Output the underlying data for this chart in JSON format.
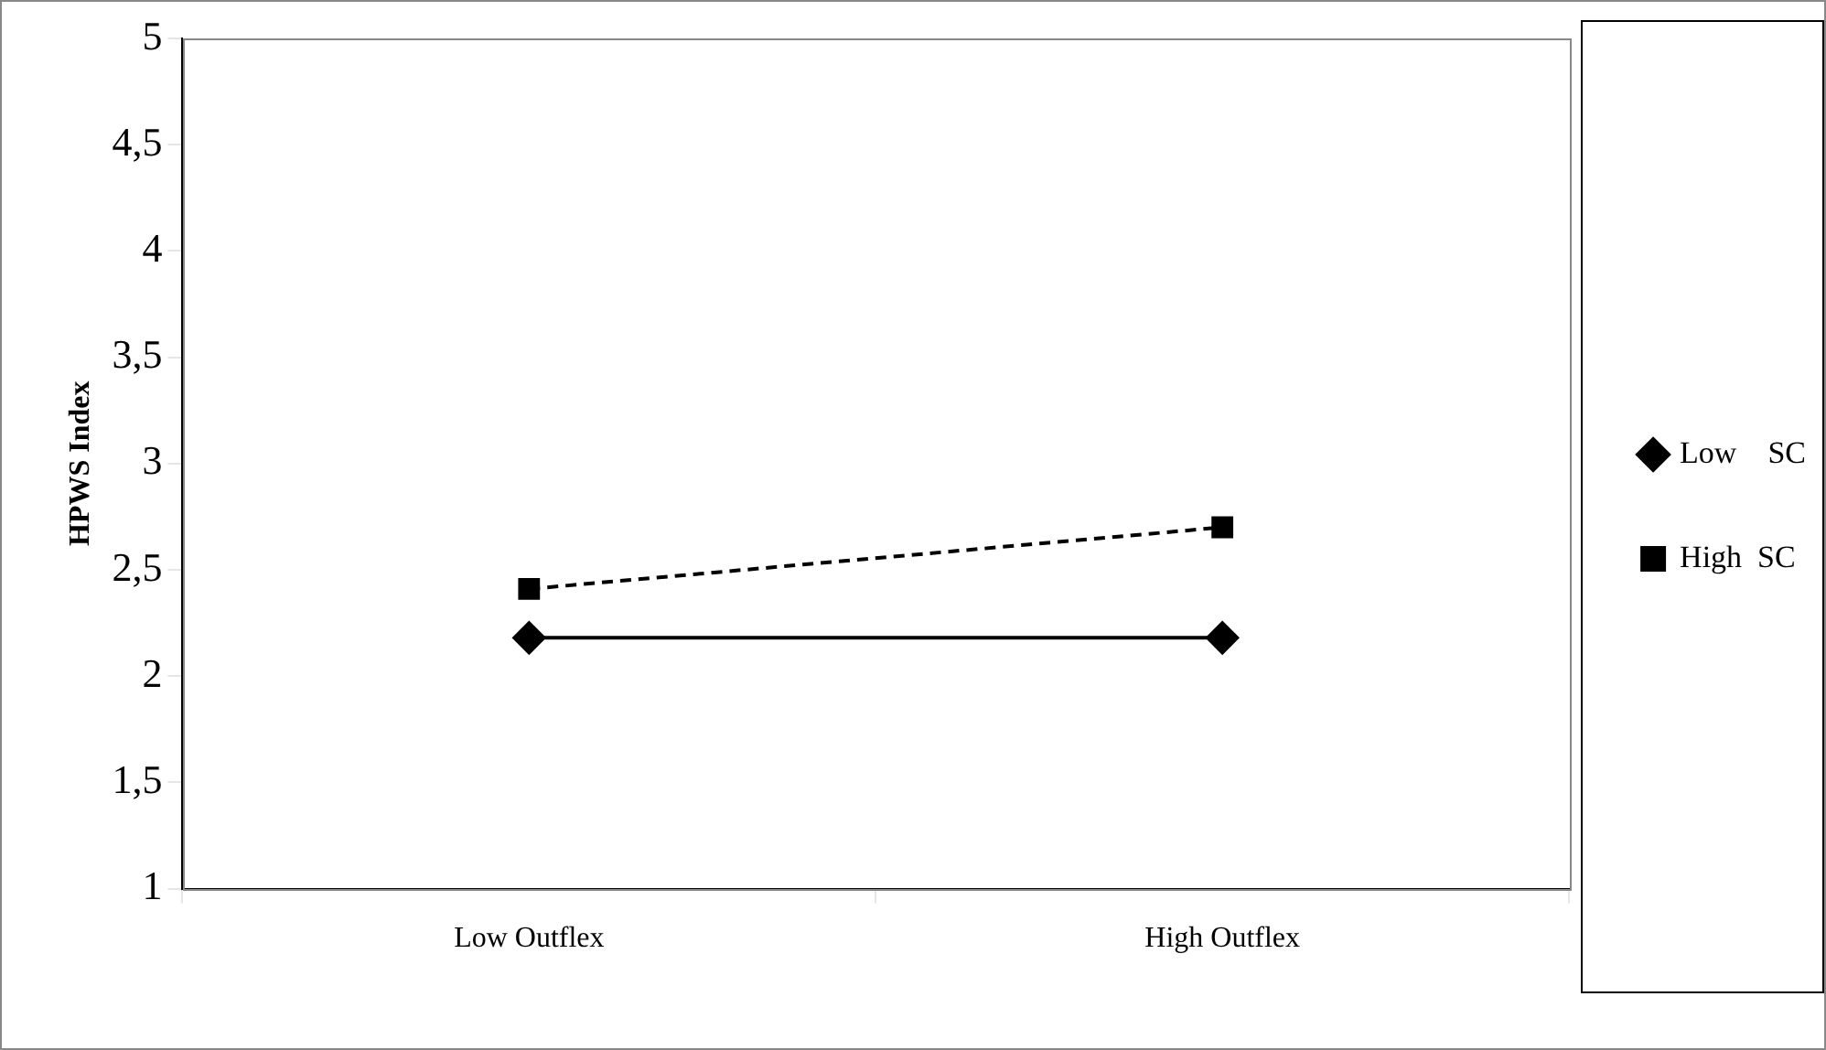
{
  "chart_data": {
    "type": "line",
    "ylabel": "HPWS Index",
    "categories": [
      "Low Outflex",
      "High Outflex"
    ],
    "series": [
      {
        "name": "Low    SC",
        "color": "#000000",
        "values": [
          2.18,
          2.18
        ],
        "marker": "diamond",
        "line_style": "solid"
      },
      {
        "name": "High  SC",
        "color": "#000000",
        "values": [
          2.41,
          2.7
        ],
        "marker": "square",
        "line_style": "dashed"
      }
    ],
    "ylim": [
      1,
      5
    ],
    "yticks": [
      1,
      {
        "value": 1.5,
        "label": "1,5"
      },
      2,
      {
        "value": 2.5,
        "label": "2,5"
      },
      3,
      {
        "value": 3.5,
        "label": "3,5"
      },
      4,
      {
        "value": 4.5,
        "label": "4,5"
      },
      5
    ],
    "grid": false,
    "legend": "right"
  }
}
